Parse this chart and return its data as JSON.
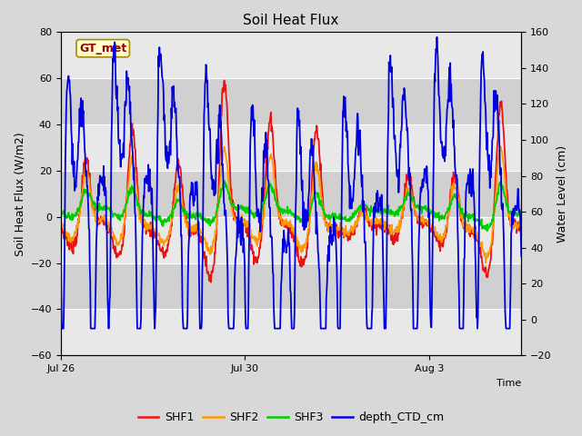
{
  "title": "Soil Heat Flux",
  "xlabel": "Time",
  "ylabel_left": "Soil Heat Flux (W/m2)",
  "ylabel_right": "Water Level (cm)",
  "ylim_left": [
    -60,
    80
  ],
  "ylim_right": [
    -20,
    160
  ],
  "yticks_left": [
    -60,
    -40,
    -20,
    0,
    20,
    40,
    60,
    80
  ],
  "yticks_right": [
    -20,
    0,
    20,
    40,
    60,
    80,
    100,
    120,
    140,
    160
  ],
  "xtick_labels": [
    "Jul 26",
    "Jul 30",
    "Aug 3"
  ],
  "xtick_positions": [
    0,
    4,
    8
  ],
  "xlim": [
    0,
    10
  ],
  "colors": {
    "SHF1": "#ee1111",
    "SHF2": "#ff9900",
    "SHF3": "#00cc00",
    "depth_CTD_cm": "#0000dd"
  },
  "annotation_text": "GT_met",
  "annotation_color": "#990000",
  "annotation_bg": "#ffffcc",
  "annotation_edge": "#aa8800",
  "fig_bg": "#d8d8d8",
  "plot_bg_light": "#e8e8e8",
  "plot_bg_dark": "#d0d0d0",
  "grid_color": "#ffffff",
  "title_fontsize": 11,
  "label_fontsize": 9,
  "tick_fontsize": 8,
  "legend_fontsize": 9,
  "linewidth": 1.3
}
